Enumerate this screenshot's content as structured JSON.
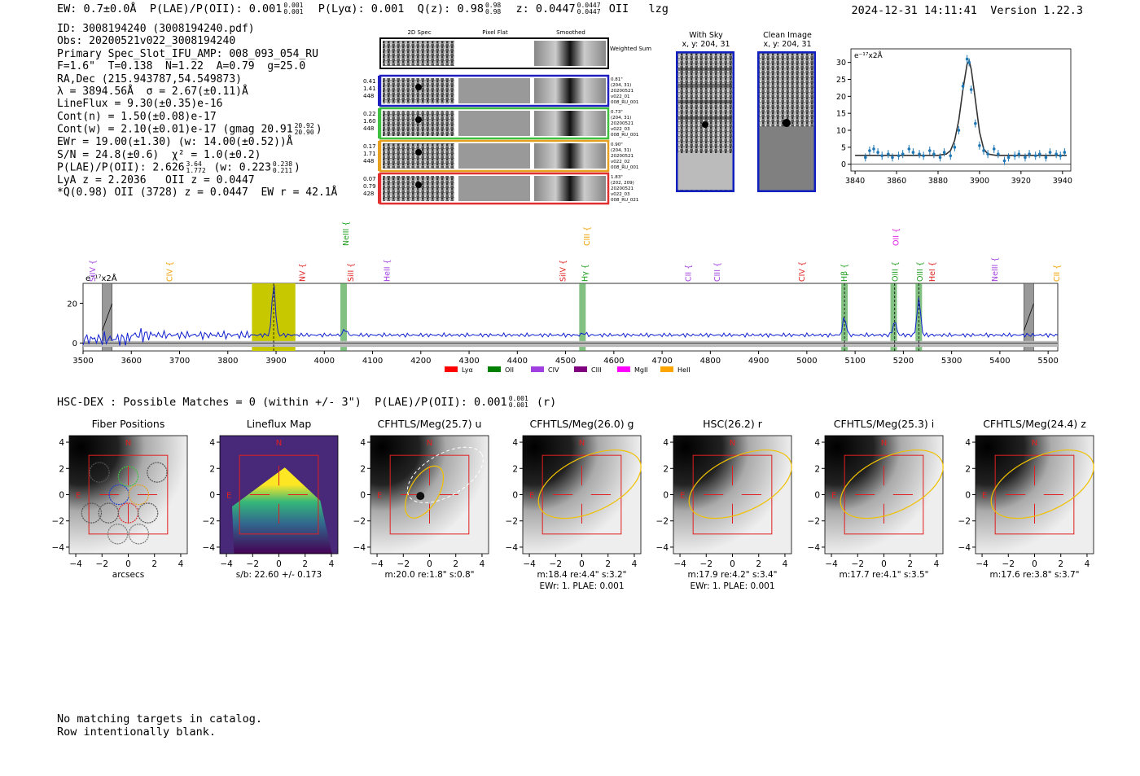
{
  "header": {
    "ew": "EW: 0.7±0.0Å",
    "plae_label": "P(LAE)/P(OII): 0.001",
    "plae_hi": "0.001",
    "plae_lo": "0.001",
    "plya": "P(Lyα): 0.001",
    "qz_label": "Q(z): 0.98",
    "qz_hi": "0.98",
    "qz_lo": "0.98",
    "z_label": "z: 0.0447",
    "z_hi": "0.0447",
    "z_lo": "0.0447",
    "line": "OII",
    "flag": "lzg",
    "timestamp": "2024-12-31 14:11:41",
    "version": "Version 1.22.3"
  },
  "info": {
    "id": "ID: 3008194240 (3008194240.pdf)",
    "obs": "Obs: 20200521v022_3008194240",
    "primary": "Primary Spec_Slot_IFU_AMP: 008_093_054_RU",
    "params": "F=1.6\"  T=0.138  N=1.22  A=0.79  g=25.0",
    "radec": "RA,Dec (215.943787,54.549873)",
    "lambda": "λ = 3894.56Å  σ = 2.67(±0.11)Å",
    "lineflux": "LineFlux = 9.30(±0.35)e-16",
    "contn": "Cont(n) = 1.50(±0.08)e-17",
    "contw": "Cont(w) = 2.10(±0.01)e-17 (gmag 20.91",
    "gmag_hi": "20.92",
    "gmag_lo": "20.90",
    "ewr": "EWr = 19.00(±1.30) (w: 14.00(±0.52))Å",
    "sn": "S/N = 24.8(±0.6)  χ² = 1.0(±0.2)",
    "plae": "P(LAE)/P(OII): 2.626",
    "plae_hi": "3.64",
    "plae_lo": "1.772",
    "plae_w": "(w: 0.223",
    "plae_w_hi": "0.238",
    "plae_w_lo": "0.211",
    "lya": "LyA z = 2.2036   OII z = 0.0447",
    "q": "*Q(0.98) OII (3728) z = 0.0447  EW r = 42.1Å"
  },
  "cutouts": {
    "col_headers": [
      "2D Spec",
      "Pixel Flat",
      "Smoothed"
    ],
    "weighted_sum": "Weighted Sum",
    "rows": [
      {
        "left": [
          "0.41",
          "1.41",
          "448"
        ],
        "right": [
          "0.81\"",
          "(204, 31)",
          "20200521",
          "v022_01",
          "008_RU_001"
        ],
        "color": "#2020c0"
      },
      {
        "left": [
          "0.22",
          "1.60",
          "448"
        ],
        "right": [
          "0.73\"",
          "(204, 31)",
          "20200521",
          "v022_03",
          "008_RU_001"
        ],
        "color": "#40c040"
      },
      {
        "left": [
          "0.17",
          "1.71",
          "448"
        ],
        "right": [
          "0.90\"",
          "(204, 31)",
          "20200521",
          "v022_02",
          "008_RU_001"
        ],
        "color": "#e8a020"
      },
      {
        "left": [
          "0.07",
          "0.79",
          "428"
        ],
        "right": [
          "1.83\"",
          "(202, 209)",
          "20200521",
          "v022_03",
          "008_RU_021"
        ],
        "color": "#e03030"
      }
    ]
  },
  "with_sky": {
    "title": "With Sky",
    "coords": "x, y: 204, 31"
  },
  "clean_image": {
    "title": "Clean Image",
    "coords": "x, y: 204, 31"
  },
  "chart_data": [
    {
      "type": "line",
      "title": "",
      "ylabel": "e⁻¹⁷x2Å",
      "xlim": [
        3838,
        3944
      ],
      "ylim": [
        -2,
        34
      ],
      "xticks": [
        3840,
        3860,
        3880,
        3900,
        3920,
        3940
      ],
      "yticks": [
        0,
        5,
        10,
        15,
        20,
        25,
        30
      ],
      "data_x": [
        3845,
        3847,
        3849,
        3851,
        3853,
        3856,
        3858,
        3861,
        3863,
        3866,
        3868,
        3871,
        3873,
        3876,
        3878,
        3881,
        3883,
        3886,
        3888,
        3890,
        3892,
        3894,
        3895,
        3896,
        3898,
        3900,
        3902,
        3904,
        3907,
        3909,
        3912,
        3914,
        3917,
        3919,
        3922,
        3924,
        3927,
        3929,
        3932,
        3934,
        3937,
        3939,
        3941
      ],
      "data_y": [
        2,
        4,
        4.5,
        3.5,
        2.5,
        3,
        2,
        2.5,
        3,
        4.5,
        3.5,
        3,
        2.5,
        4,
        3,
        2,
        3.5,
        2.5,
        5,
        10,
        23,
        31,
        30,
        22,
        12,
        5.5,
        4,
        3,
        4.5,
        3,
        1,
        2,
        2.5,
        3,
        2,
        3,
        2.5,
        3,
        2,
        3.5,
        3,
        2.5,
        3.5
      ],
      "model_x": [
        3840,
        3870,
        3880,
        3884,
        3886,
        3888,
        3890,
        3892,
        3894,
        3895,
        3896,
        3898,
        3900,
        3902,
        3904,
        3908,
        3942
      ],
      "model_y": [
        2.6,
        2.6,
        2.6,
        3,
        4,
        7,
        13,
        22,
        29.5,
        30.5,
        28,
        19,
        9.5,
        4.5,
        3,
        2.6,
        2.6
      ]
    },
    {
      "type": "line",
      "title": "",
      "ylabel": "e⁻¹⁷x2Å",
      "xlim": [
        3500,
        5520
      ],
      "ylim": [
        -4,
        30
      ],
      "xticks": [
        3500,
        3600,
        3700,
        3800,
        3900,
        4000,
        4100,
        4200,
        4300,
        4400,
        4500,
        4600,
        4700,
        4800,
        4900,
        5000,
        5100,
        5200,
        5300,
        5400,
        5500
      ],
      "yticks": [
        0,
        20
      ],
      "peaks": [
        {
          "x": 3895,
          "y": 30
        },
        {
          "x": 4043,
          "y": 7
        },
        {
          "x": 4538,
          "y": 5
        },
        {
          "x": 5078,
          "y": 13
        },
        {
          "x": 5182,
          "y": 11
        },
        {
          "x": 5232,
          "y": 23
        }
      ],
      "baseline": 4,
      "highlight_band": [
        3850,
        3940
      ],
      "green_bands": [
        4040,
        4535,
        5078,
        5180,
        5232
      ],
      "hatched_bands": [
        3550,
        5460
      ],
      "lines": [
        {
          "label": "SiIV",
          "x": 3520,
          "color": "#a040e0",
          "dashed": false,
          "level": 1
        },
        {
          "label": "CIV",
          "x": 3680,
          "color": "#f0a000",
          "dashed": false,
          "level": 1
        },
        {
          "label": "NV",
          "x": 3955,
          "color": "#e02020",
          "dashed": false,
          "level": 1
        },
        {
          "label": "NeIII",
          "x": 4045,
          "color": "#20a020",
          "dashed": false,
          "level": 2
        },
        {
          "label": "SiII",
          "x": 4055,
          "color": "#e02020",
          "dashed": false,
          "level": 1
        },
        {
          "label": "HeII",
          "x": 4130,
          "color": "#a040e0",
          "dashed": false,
          "level": 1
        },
        {
          "label": "SiIV",
          "x": 4495,
          "color": "#e02020",
          "dashed": false,
          "level": 1
        },
        {
          "label": "CIII",
          "x": 4545,
          "color": "#f0a000",
          "dashed": false,
          "level": 2
        },
        {
          "label": "Hγ",
          "x": 4540,
          "color": "#20a020",
          "dashed": false,
          "level": 1
        },
        {
          "label": "CII",
          "x": 4755,
          "color": "#a040e0",
          "dashed": false,
          "level": 1
        },
        {
          "label": "CIII",
          "x": 4815,
          "color": "#a040e0",
          "dashed": false,
          "level": 1
        },
        {
          "label": "CIV",
          "x": 4990,
          "color": "#e02020",
          "dashed": false,
          "level": 1
        },
        {
          "label": "Hβ",
          "x": 5078,
          "color": "#20a020",
          "dashed": false,
          "level": 1
        },
        {
          "label": "OII",
          "x": 5185,
          "color": "#e020e0",
          "dashed": false,
          "level": 2
        },
        {
          "label": "OIII",
          "x": 5183,
          "color": "#20a020",
          "dashed": false,
          "level": 1
        },
        {
          "label": "OIII",
          "x": 5235,
          "color": "#20a020",
          "dashed": false,
          "level": 1
        },
        {
          "label": "HeI",
          "x": 5260,
          "color": "#e02020",
          "dashed": false,
          "level": 1
        },
        {
          "label": "NeIII",
          "x": 5390,
          "color": "#a040e0",
          "dashed": false,
          "level": 1
        },
        {
          "label": "CII",
          "x": 5520,
          "color": "#f0a000",
          "dashed": false,
          "level": 1
        }
      ],
      "legend": [
        {
          "label": "Lyα",
          "color": "#ff0000"
        },
        {
          "label": "OII",
          "color": "#008000"
        },
        {
          "label": "CIV",
          "color": "#a040e0"
        },
        {
          "label": "CIII",
          "color": "#800080"
        },
        {
          "label": "MgII",
          "color": "#ff00ff"
        },
        {
          "label": "HeII",
          "color": "#ffa500"
        }
      ]
    }
  ],
  "hsc": {
    "title": "HSC-DEX : Possible Matches = 0 (within +/- 3\")  P(LAE)/P(OII): 0.001",
    "frac_hi": "0.001",
    "frac_lo": "0.001",
    "suffix": "(r)",
    "panels": [
      {
        "title": "Fiber Positions",
        "caption1": "arcsecs",
        "caption2": ""
      },
      {
        "title": "Lineflux Map",
        "caption1": "s/b: 22.60 +/- 0.173",
        "caption2": ""
      },
      {
        "title": "CFHTLS/Meg(25.7) u",
        "caption1": "m:20.0  re:1.8\"  s:0.8\"",
        "caption2": ""
      },
      {
        "title": "CFHTLS/Meg(26.0) g",
        "caption1": "m:18.4  re:4.4\"  s:3.2\"",
        "caption2": "EWr: 1. PLAE: 0.001"
      },
      {
        "title": "HSC(26.2) r",
        "caption1": "m:17.9  re:4.2\"  s:3.4\"",
        "caption2": "EWr: 1. PLAE: 0.001"
      },
      {
        "title": "CFHTLS/Meg(25.3) i",
        "caption1": "m:17.7  re:4.1\"  s:3.5\"",
        "caption2": ""
      },
      {
        "title": "CFHTLS/Meg(24.4) z",
        "caption1": "m:17.6  re:3.8\"  s:3.7\"",
        "caption2": ""
      }
    ],
    "axis_ticks": [
      "4",
      "2",
      "0",
      "−2",
      "−4"
    ],
    "x_ticks": [
      "−4",
      "−2",
      "0",
      "2",
      "4"
    ],
    "north": "N",
    "east": "E"
  },
  "footer": {
    "line1": "No matching targets in catalog.",
    "line2": "Row intentionally blank."
  }
}
